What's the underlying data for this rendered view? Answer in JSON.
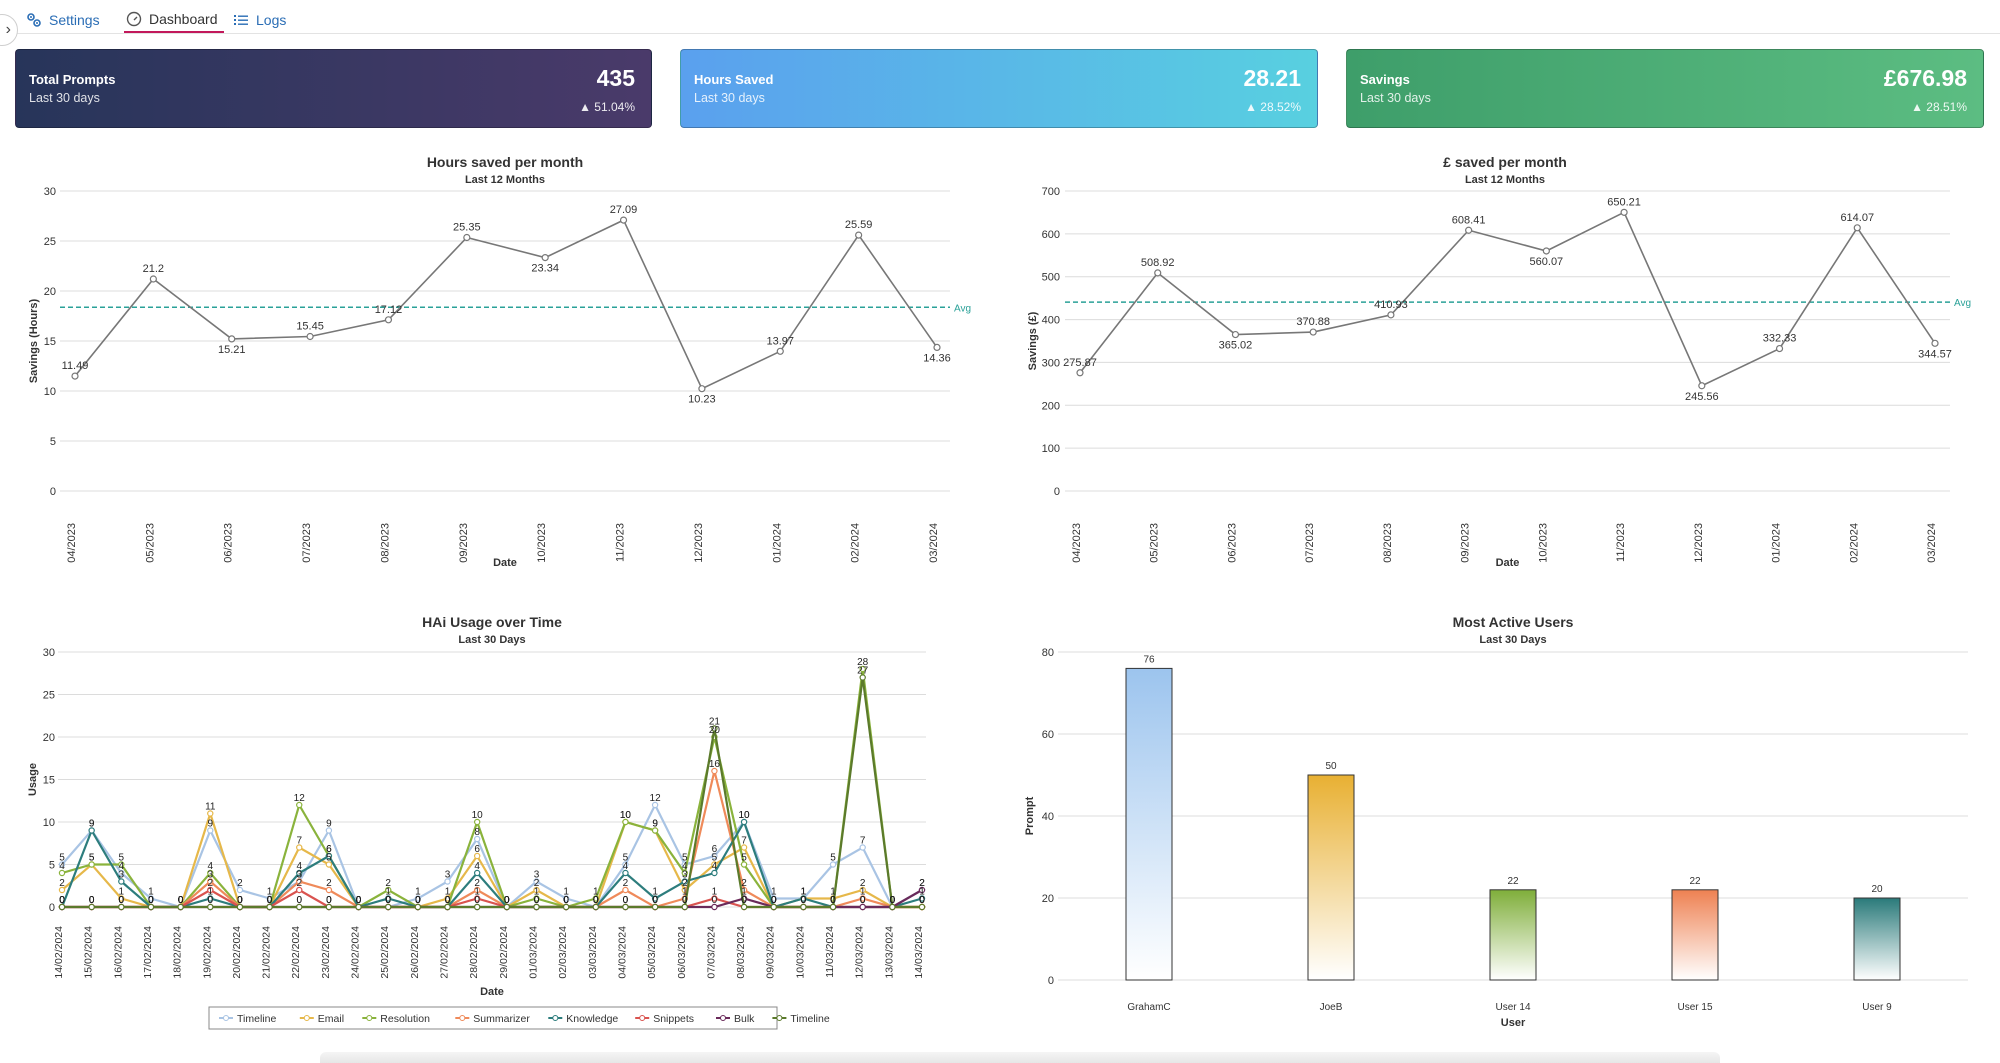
{
  "nav": {
    "tabs": [
      {
        "label": "Settings",
        "icon": "gears-icon"
      },
      {
        "label": "Dashboard",
        "icon": "gauge-icon"
      },
      {
        "label": "Logs",
        "icon": "list-icon"
      }
    ],
    "active_tab": "Dashboard"
  },
  "cards": [
    {
      "title": "Total Prompts",
      "subtitle": "Last 30 days",
      "value": "435",
      "change": "▲ 51.04%",
      "gradient": [
        "#27355a",
        "#4a3a6a"
      ]
    },
    {
      "title": "Hours Saved",
      "subtitle": "Last 30 days",
      "value": "28.21",
      "change": "▲ 28.52%",
      "gradient": [
        "#5aa0ee",
        "#58d0e0"
      ]
    },
    {
      "title": "Savings",
      "subtitle": "Last 30 days",
      "value": "£676.98",
      "change": "▲ 28.51%",
      "gradient": [
        "#3e9e6a",
        "#5cbd82"
      ]
    }
  ],
  "chart_data": [
    {
      "type": "line",
      "title": "Hours saved per month",
      "subtitle": "Last 12 Months",
      "xlabel": "Date",
      "ylabel": "Savings (Hours)",
      "ylim": [
        0,
        30
      ],
      "yticks": [
        0,
        5,
        10,
        15,
        20,
        25,
        30
      ],
      "categories": [
        "04/2023",
        "05/2023",
        "06/2023",
        "07/2023",
        "08/2023",
        "09/2023",
        "10/2023",
        "11/2023",
        "12/2023",
        "01/2024",
        "02/2024",
        "03/2024"
      ],
      "values": [
        11.49,
        21.2,
        15.21,
        15.45,
        17.12,
        25.35,
        23.34,
        27.09,
        10.23,
        13.97,
        25.59,
        14.36
      ],
      "label_pos": [
        "above",
        "above",
        "below",
        "above",
        "above",
        "above",
        "below",
        "above",
        "below",
        "above",
        "above",
        "below"
      ],
      "avg": 18.37,
      "avg_label": "Avg",
      "grid": true
    },
    {
      "type": "line",
      "title": "£ saved per month",
      "subtitle": "Last 12 Months",
      "xlabel": "Date",
      "ylabel": "Savings (£)",
      "ylim": [
        0,
        700
      ],
      "yticks": [
        0,
        100,
        200,
        300,
        400,
        500,
        600,
        700
      ],
      "categories": [
        "04/2023",
        "05/2023",
        "06/2023",
        "07/2023",
        "08/2023",
        "09/2023",
        "10/2023",
        "11/2023",
        "12/2023",
        "01/2024",
        "02/2024",
        "03/2024"
      ],
      "values": [
        275.87,
        508.92,
        365.02,
        370.88,
        410.93,
        608.41,
        560.07,
        650.21,
        245.56,
        332.33,
        614.07,
        344.57
      ],
      "label_pos": [
        "above",
        "above",
        "below",
        "above",
        "above",
        "above",
        "below",
        "above",
        "below",
        "above",
        "above",
        "below"
      ],
      "avg": 440.6,
      "avg_label": "Avg",
      "grid": true
    },
    {
      "type": "line",
      "title": "HAi Usage over Time",
      "subtitle": "Last 30 Days",
      "xlabel": "Date",
      "ylabel": "Usage",
      "ylim": [
        0,
        30
      ],
      "yticks": [
        0,
        5,
        10,
        15,
        20,
        25,
        30
      ],
      "legend_position": "bottom",
      "categories": [
        "14/02/2024",
        "15/02/2024",
        "16/02/2024",
        "17/02/2024",
        "18/02/2024",
        "19/02/2024",
        "20/02/2024",
        "21/02/2024",
        "22/02/2024",
        "23/02/2024",
        "24/02/2024",
        "25/02/2024",
        "26/02/2024",
        "27/02/2024",
        "28/02/2024",
        "29/02/2024",
        "01/03/2024",
        "02/03/2024",
        "03/03/2024",
        "04/03/2024",
        "05/03/2024",
        "06/03/2024",
        "07/03/2024",
        "08/03/2024",
        "09/03/2024",
        "10/03/2024",
        "11/03/2024",
        "12/03/2024",
        "13/03/2024",
        "14/03/2024"
      ],
      "series": [
        {
          "name": "Timeline",
          "color": "#a9c4e4",
          "values": [
            5,
            9,
            4,
            1,
            0,
            9,
            2,
            1,
            3,
            9,
            0,
            0,
            1,
            3,
            8,
            0,
            3,
            1,
            0,
            5,
            12,
            5,
            6,
            10,
            1,
            1,
            5,
            7,
            0,
            2
          ]
        },
        {
          "name": "Email",
          "color": "#e6b84a",
          "values": [
            2,
            5,
            1,
            0,
            0,
            11,
            0,
            0,
            7,
            5,
            0,
            0,
            0,
            1,
            6,
            0,
            2,
            0,
            0,
            10,
            9,
            2,
            5,
            7,
            0,
            1,
            1,
            2,
            0,
            0
          ]
        },
        {
          "name": "Resolution",
          "color": "#8ab33c",
          "values": [
            4,
            5,
            5,
            0,
            0,
            4,
            0,
            0,
            12,
            6,
            0,
            2,
            0,
            0,
            10,
            0,
            1,
            0,
            1,
            10,
            9,
            4,
            20,
            5,
            0,
            0,
            0,
            28,
            0,
            0
          ]
        },
        {
          "name": "Summarizer",
          "color": "#ef8a5a",
          "values": [
            0,
            0,
            0,
            0,
            0,
            3,
            0,
            0,
            3,
            2,
            0,
            0,
            0,
            0,
            2,
            0,
            0,
            0,
            0,
            2,
            0,
            1,
            16,
            2,
            0,
            0,
            0,
            1,
            0,
            0
          ]
        },
        {
          "name": "Knowledge",
          "color": "#2d7d7d",
          "values": [
            0,
            9,
            3,
            0,
            0,
            1,
            0,
            0,
            4,
            6,
            0,
            1,
            0,
            0,
            4,
            0,
            0,
            0,
            0,
            4,
            1,
            3,
            4,
            10,
            0,
            1,
            0,
            0,
            0,
            1
          ]
        },
        {
          "name": "Snippets",
          "color": "#d9534f",
          "values": [
            0,
            0,
            0,
            0,
            0,
            2,
            0,
            0,
            2,
            0,
            0,
            0,
            0,
            0,
            1,
            0,
            0,
            0,
            0,
            0,
            0,
            0,
            1,
            0,
            0,
            0,
            0,
            0,
            0,
            0
          ]
        },
        {
          "name": "Bulk",
          "color": "#6a2a5a",
          "values": [
            0,
            0,
            0,
            0,
            0,
            0,
            0,
            0,
            0,
            0,
            0,
            0,
            0,
            0,
            0,
            0,
            0,
            0,
            0,
            0,
            0,
            0,
            0,
            1,
            0,
            0,
            0,
            0,
            0,
            2
          ]
        },
        {
          "name": "Timeline",
          "color": "#5b7a2b",
          "values": [
            0,
            0,
            0,
            0,
            0,
            0,
            0,
            0,
            0,
            0,
            0,
            0,
            0,
            0,
            0,
            0,
            0,
            0,
            0,
            0,
            0,
            0,
            21,
            0,
            0,
            0,
            0,
            27,
            0,
            0
          ]
        }
      ]
    },
    {
      "type": "bar",
      "title": "Most Active Users",
      "subtitle": "Last 30 Days",
      "xlabel": "User",
      "ylabel": "Prompt",
      "ylim": [
        0,
        80
      ],
      "yticks": [
        0,
        20,
        40,
        60,
        80
      ],
      "categories": [
        "GrahamC",
        "JoeB",
        "User 14",
        "User 15",
        "User 9"
      ],
      "values": [
        76,
        50,
        22,
        22,
        20
      ],
      "colors": [
        "#9cc4ee",
        "#e8b032",
        "#7fae3a",
        "#ee8152",
        "#2a7a7a"
      ]
    }
  ]
}
